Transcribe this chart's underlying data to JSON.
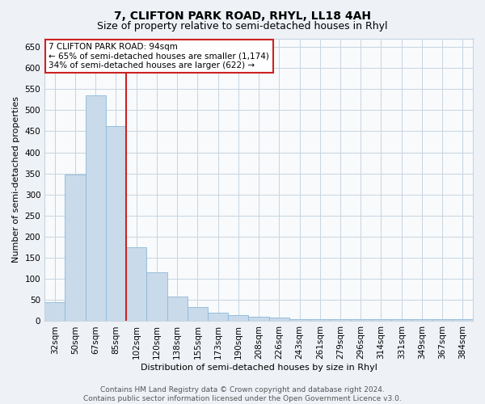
{
  "title": "7, CLIFTON PARK ROAD, RHYL, LL18 4AH",
  "subtitle": "Size of property relative to semi-detached houses in Rhyl",
  "xlabel": "Distribution of semi-detached houses by size in Rhyl",
  "ylabel": "Number of semi-detached properties",
  "categories": [
    "32sqm",
    "50sqm",
    "67sqm",
    "85sqm",
    "102sqm",
    "120sqm",
    "138sqm",
    "155sqm",
    "173sqm",
    "190sqm",
    "208sqm",
    "226sqm",
    "243sqm",
    "261sqm",
    "279sqm",
    "296sqm",
    "314sqm",
    "331sqm",
    "349sqm",
    "367sqm",
    "384sqm"
  ],
  "values": [
    45,
    348,
    535,
    463,
    175,
    115,
    58,
    33,
    20,
    15,
    10,
    8,
    5,
    5,
    5,
    5,
    4,
    5,
    4,
    4,
    4
  ],
  "bar_color": "#c9daea",
  "bar_edge_color": "#8cb8d8",
  "highlight_bar_index": 3,
  "highlight_edge_color": "#cc2222",
  "annotation_title": "7 CLIFTON PARK ROAD: 94sqm",
  "annotation_line1": "← 65% of semi-detached houses are smaller (1,174)",
  "annotation_line2": "34% of semi-detached houses are larger (622) →",
  "annotation_box_color": "white",
  "annotation_box_edge_color": "#cc2222",
  "ylim": [
    0,
    670
  ],
  "yticks": [
    0,
    50,
    100,
    150,
    200,
    250,
    300,
    350,
    400,
    450,
    500,
    550,
    600,
    650
  ],
  "footer_line1": "Contains HM Land Registry data © Crown copyright and database right 2024.",
  "footer_line2": "Contains public sector information licensed under the Open Government Licence v3.0.",
  "background_color": "#eef2f7",
  "plot_background_color": "#f8fafc",
  "grid_color": "#c8d4e0",
  "title_fontsize": 10,
  "subtitle_fontsize": 9,
  "axis_label_fontsize": 8,
  "tick_fontsize": 7.5,
  "annotation_fontsize": 7.5,
  "footer_fontsize": 6.5
}
